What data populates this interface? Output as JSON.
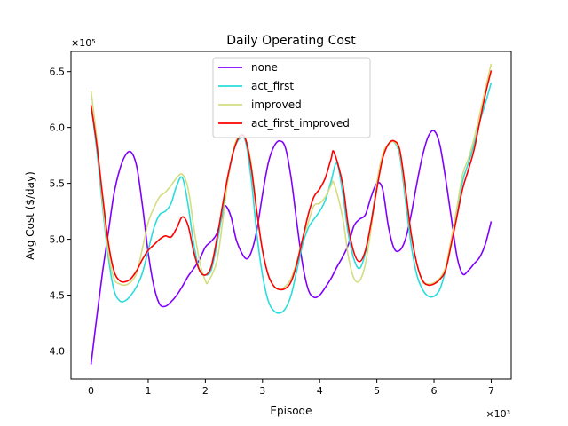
{
  "chart_data": {
    "type": "line",
    "title": "Daily Operating Cost",
    "xlabel": "Episode",
    "ylabel": "Avg Cost ($/day)",
    "x_multiplier": "×10³",
    "y_multiplier": "×10⁵",
    "xlim": [
      -0.35,
      7.35
    ],
    "ylim": [
      3.75,
      6.68
    ],
    "x_ticks": [
      0,
      1,
      2,
      3,
      4,
      5,
      6,
      7
    ],
    "y_ticks": [
      4.0,
      4.5,
      5.0,
      5.5,
      6.0,
      6.5
    ],
    "x_tick_labels": [
      "0",
      "1",
      "2",
      "3",
      "4",
      "5",
      "6",
      "7"
    ],
    "y_tick_labels": [
      "4.0",
      "4.5",
      "5.0",
      "5.5",
      "6.0",
      "6.5"
    ],
    "legend_position": "top-center",
    "grid": false,
    "series": [
      {
        "name": "none",
        "color": "#8000ff",
        "points": [
          [
            0,
            3.88
          ],
          [
            0.1,
            4.3
          ],
          [
            0.2,
            4.7
          ],
          [
            0.3,
            5.05
          ],
          [
            0.4,
            5.4
          ],
          [
            0.5,
            5.62
          ],
          [
            0.6,
            5.75
          ],
          [
            0.7,
            5.78
          ],
          [
            0.8,
            5.65
          ],
          [
            0.9,
            5.3
          ],
          [
            1.0,
            4.88
          ],
          [
            1.1,
            4.58
          ],
          [
            1.2,
            4.42
          ],
          [
            1.3,
            4.4
          ],
          [
            1.4,
            4.44
          ],
          [
            1.5,
            4.5
          ],
          [
            1.6,
            4.58
          ],
          [
            1.7,
            4.67
          ],
          [
            1.8,
            4.74
          ],
          [
            1.9,
            4.82
          ],
          [
            2.0,
            4.93
          ],
          [
            2.1,
            4.98
          ],
          [
            2.2,
            5.05
          ],
          [
            2.3,
            5.22
          ],
          [
            2.35,
            5.3
          ],
          [
            2.45,
            5.2
          ],
          [
            2.55,
            4.98
          ],
          [
            2.7,
            4.83
          ],
          [
            2.8,
            4.88
          ],
          [
            2.9,
            5.08
          ],
          [
            3.0,
            5.4
          ],
          [
            3.1,
            5.68
          ],
          [
            3.2,
            5.83
          ],
          [
            3.3,
            5.88
          ],
          [
            3.4,
            5.82
          ],
          [
            3.5,
            5.55
          ],
          [
            3.6,
            5.15
          ],
          [
            3.7,
            4.78
          ],
          [
            3.8,
            4.55
          ],
          [
            3.9,
            4.48
          ],
          [
            4.0,
            4.5
          ],
          [
            4.1,
            4.57
          ],
          [
            4.2,
            4.65
          ],
          [
            4.3,
            4.75
          ],
          [
            4.4,
            4.84
          ],
          [
            4.5,
            4.95
          ],
          [
            4.6,
            5.12
          ],
          [
            4.7,
            5.18
          ],
          [
            4.8,
            5.22
          ],
          [
            4.9,
            5.38
          ],
          [
            5.0,
            5.5
          ],
          [
            5.1,
            5.45
          ],
          [
            5.2,
            5.12
          ],
          [
            5.3,
            4.92
          ],
          [
            5.4,
            4.9
          ],
          [
            5.5,
            5.0
          ],
          [
            5.6,
            5.22
          ],
          [
            5.7,
            5.5
          ],
          [
            5.8,
            5.75
          ],
          [
            5.9,
            5.92
          ],
          [
            6.0,
            5.97
          ],
          [
            6.1,
            5.85
          ],
          [
            6.2,
            5.55
          ],
          [
            6.3,
            5.2
          ],
          [
            6.4,
            4.85
          ],
          [
            6.5,
            4.69
          ],
          [
            6.6,
            4.72
          ],
          [
            6.7,
            4.78
          ],
          [
            6.8,
            4.84
          ],
          [
            6.9,
            4.96
          ],
          [
            7.0,
            5.16
          ]
        ]
      },
      {
        "name": "act_first",
        "color": "#2adddd",
        "points": [
          [
            0,
            6.2
          ],
          [
            0.1,
            5.8
          ],
          [
            0.2,
            5.3
          ],
          [
            0.3,
            4.85
          ],
          [
            0.4,
            4.55
          ],
          [
            0.5,
            4.45
          ],
          [
            0.6,
            4.45
          ],
          [
            0.7,
            4.5
          ],
          [
            0.8,
            4.58
          ],
          [
            0.9,
            4.7
          ],
          [
            1.0,
            4.9
          ],
          [
            1.1,
            5.1
          ],
          [
            1.2,
            5.22
          ],
          [
            1.3,
            5.25
          ],
          [
            1.4,
            5.32
          ],
          [
            1.5,
            5.48
          ],
          [
            1.6,
            5.55
          ],
          [
            1.7,
            5.3
          ],
          [
            1.8,
            4.95
          ],
          [
            1.9,
            4.72
          ],
          [
            2.0,
            4.68
          ],
          [
            2.1,
            4.72
          ],
          [
            2.2,
            4.95
          ],
          [
            2.3,
            5.25
          ],
          [
            2.4,
            5.55
          ],
          [
            2.5,
            5.8
          ],
          [
            2.6,
            5.9
          ],
          [
            2.7,
            5.88
          ],
          [
            2.8,
            5.55
          ],
          [
            2.9,
            5.05
          ],
          [
            3.0,
            4.68
          ],
          [
            3.1,
            4.45
          ],
          [
            3.2,
            4.36
          ],
          [
            3.3,
            4.34
          ],
          [
            3.4,
            4.38
          ],
          [
            3.5,
            4.5
          ],
          [
            3.6,
            4.72
          ],
          [
            3.7,
            4.95
          ],
          [
            3.8,
            5.1
          ],
          [
            3.9,
            5.18
          ],
          [
            4.0,
            5.25
          ],
          [
            4.1,
            5.35
          ],
          [
            4.2,
            5.52
          ],
          [
            4.3,
            5.68
          ],
          [
            4.4,
            5.42
          ],
          [
            4.5,
            5.05
          ],
          [
            4.6,
            4.82
          ],
          [
            4.7,
            4.74
          ],
          [
            4.8,
            4.88
          ],
          [
            4.9,
            5.15
          ],
          [
            5.0,
            5.5
          ],
          [
            5.1,
            5.75
          ],
          [
            5.2,
            5.85
          ],
          [
            5.3,
            5.87
          ],
          [
            5.4,
            5.75
          ],
          [
            5.5,
            5.35
          ],
          [
            5.6,
            4.95
          ],
          [
            5.7,
            4.68
          ],
          [
            5.8,
            4.55
          ],
          [
            5.9,
            4.49
          ],
          [
            6.0,
            4.49
          ],
          [
            6.1,
            4.55
          ],
          [
            6.2,
            4.72
          ],
          [
            6.3,
            4.98
          ],
          [
            6.4,
            5.25
          ],
          [
            6.5,
            5.52
          ],
          [
            6.6,
            5.68
          ],
          [
            6.7,
            5.85
          ],
          [
            6.8,
            6.05
          ],
          [
            6.9,
            6.22
          ],
          [
            7.0,
            6.4
          ]
        ]
      },
      {
        "name": "improved",
        "color": "#d4dd80",
        "points": [
          [
            0,
            6.33
          ],
          [
            0.1,
            5.9
          ],
          [
            0.2,
            5.35
          ],
          [
            0.3,
            4.9
          ],
          [
            0.4,
            4.65
          ],
          [
            0.5,
            4.6
          ],
          [
            0.6,
            4.59
          ],
          [
            0.7,
            4.62
          ],
          [
            0.8,
            4.7
          ],
          [
            0.9,
            4.92
          ],
          [
            1.0,
            5.15
          ],
          [
            1.1,
            5.28
          ],
          [
            1.2,
            5.38
          ],
          [
            1.3,
            5.42
          ],
          [
            1.4,
            5.48
          ],
          [
            1.5,
            5.55
          ],
          [
            1.6,
            5.58
          ],
          [
            1.7,
            5.45
          ],
          [
            1.8,
            5.1
          ],
          [
            1.9,
            4.8
          ],
          [
            2.0,
            4.63
          ],
          [
            2.05,
            4.62
          ],
          [
            2.2,
            4.8
          ],
          [
            2.3,
            5.15
          ],
          [
            2.4,
            5.55
          ],
          [
            2.5,
            5.82
          ],
          [
            2.6,
            5.93
          ],
          [
            2.7,
            5.9
          ],
          [
            2.8,
            5.68
          ],
          [
            2.9,
            5.25
          ],
          [
            3.0,
            4.9
          ],
          [
            3.1,
            4.68
          ],
          [
            3.2,
            4.58
          ],
          [
            3.3,
            4.55
          ],
          [
            3.4,
            4.58
          ],
          [
            3.5,
            4.65
          ],
          [
            3.6,
            4.8
          ],
          [
            3.7,
            5.0
          ],
          [
            3.8,
            5.15
          ],
          [
            3.9,
            5.3
          ],
          [
            4.0,
            5.32
          ],
          [
            4.1,
            5.38
          ],
          [
            4.2,
            5.48
          ],
          [
            4.25,
            5.5
          ],
          [
            4.4,
            5.2
          ],
          [
            4.5,
            4.85
          ],
          [
            4.6,
            4.65
          ],
          [
            4.7,
            4.63
          ],
          [
            4.8,
            4.78
          ],
          [
            4.9,
            5.1
          ],
          [
            5.0,
            5.5
          ],
          [
            5.1,
            5.76
          ],
          [
            5.2,
            5.85
          ],
          [
            5.3,
            5.87
          ],
          [
            5.4,
            5.78
          ],
          [
            5.5,
            5.42
          ],
          [
            5.6,
            5.05
          ],
          [
            5.7,
            4.78
          ],
          [
            5.8,
            4.62
          ],
          [
            5.9,
            4.6
          ],
          [
            6.0,
            4.61
          ],
          [
            6.1,
            4.65
          ],
          [
            6.2,
            4.75
          ],
          [
            6.3,
            5.0
          ],
          [
            6.4,
            5.28
          ],
          [
            6.5,
            5.58
          ],
          [
            6.6,
            5.72
          ],
          [
            6.7,
            5.9
          ],
          [
            6.8,
            6.12
          ],
          [
            6.9,
            6.35
          ],
          [
            7.0,
            6.57
          ]
        ]
      },
      {
        "name": "act_first_improved",
        "color": "#ff0000",
        "points": [
          [
            0,
            6.2
          ],
          [
            0.1,
            5.85
          ],
          [
            0.2,
            5.4
          ],
          [
            0.3,
            4.98
          ],
          [
            0.4,
            4.72
          ],
          [
            0.5,
            4.63
          ],
          [
            0.6,
            4.62
          ],
          [
            0.7,
            4.65
          ],
          [
            0.8,
            4.72
          ],
          [
            0.9,
            4.82
          ],
          [
            1.0,
            4.9
          ],
          [
            1.1,
            4.95
          ],
          [
            1.2,
            5.0
          ],
          [
            1.3,
            5.03
          ],
          [
            1.4,
            5.02
          ],
          [
            1.5,
            5.1
          ],
          [
            1.6,
            5.2
          ],
          [
            1.7,
            5.12
          ],
          [
            1.8,
            4.88
          ],
          [
            1.9,
            4.72
          ],
          [
            2.0,
            4.68
          ],
          [
            2.1,
            4.75
          ],
          [
            2.2,
            5.0
          ],
          [
            2.3,
            5.3
          ],
          [
            2.4,
            5.58
          ],
          [
            2.5,
            5.8
          ],
          [
            2.6,
            5.92
          ],
          [
            2.7,
            5.9
          ],
          [
            2.8,
            5.65
          ],
          [
            2.9,
            5.25
          ],
          [
            3.0,
            4.9
          ],
          [
            3.1,
            4.68
          ],
          [
            3.2,
            4.58
          ],
          [
            3.3,
            4.55
          ],
          [
            3.4,
            4.56
          ],
          [
            3.5,
            4.62
          ],
          [
            3.6,
            4.78
          ],
          [
            3.7,
            5.0
          ],
          [
            3.8,
            5.22
          ],
          [
            3.9,
            5.38
          ],
          [
            4.0,
            5.45
          ],
          [
            4.1,
            5.55
          ],
          [
            4.2,
            5.72
          ],
          [
            4.25,
            5.78
          ],
          [
            4.4,
            5.5
          ],
          [
            4.5,
            5.12
          ],
          [
            4.6,
            4.88
          ],
          [
            4.7,
            4.8
          ],
          [
            4.8,
            4.9
          ],
          [
            4.9,
            5.15
          ],
          [
            5.0,
            5.45
          ],
          [
            5.1,
            5.72
          ],
          [
            5.2,
            5.85
          ],
          [
            5.3,
            5.88
          ],
          [
            5.4,
            5.8
          ],
          [
            5.5,
            5.45
          ],
          [
            5.6,
            5.05
          ],
          [
            5.7,
            4.78
          ],
          [
            5.8,
            4.63
          ],
          [
            5.9,
            4.59
          ],
          [
            6.0,
            4.6
          ],
          [
            6.1,
            4.64
          ],
          [
            6.2,
            4.72
          ],
          [
            6.3,
            4.95
          ],
          [
            6.4,
            5.2
          ],
          [
            6.5,
            5.45
          ],
          [
            6.6,
            5.62
          ],
          [
            6.7,
            5.8
          ],
          [
            6.8,
            6.05
          ],
          [
            6.9,
            6.3
          ],
          [
            7.0,
            6.51
          ]
        ]
      }
    ]
  }
}
